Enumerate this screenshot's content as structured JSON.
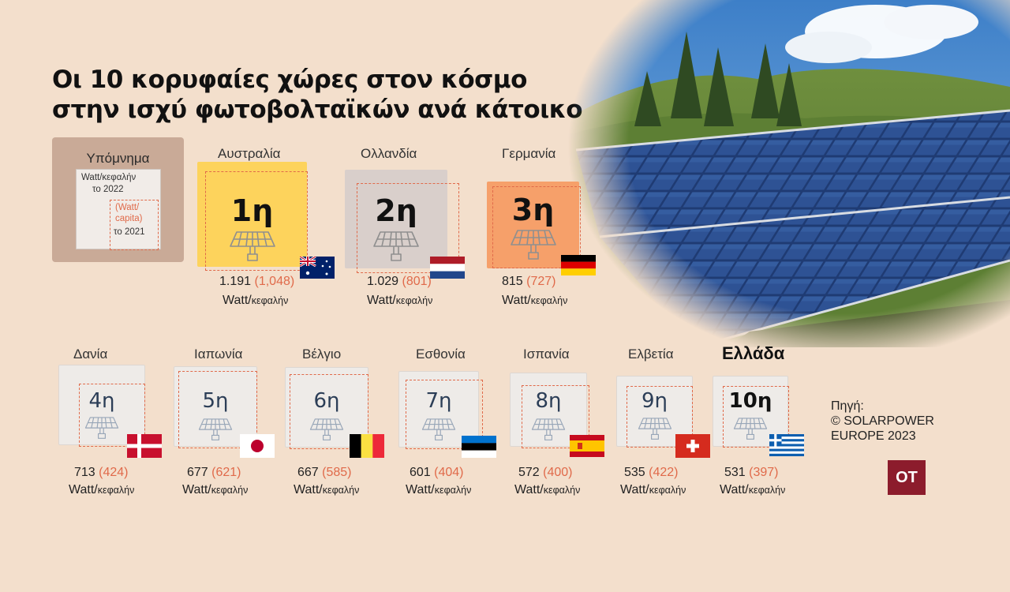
{
  "title": {
    "line1": "Οι 10 κορυφαίες χώρες στον κόσμο",
    "line2": "στην ισχύ φωτοβολταϊκών ανά κάτοικο"
  },
  "legend": {
    "title": "Υπόμνημα",
    "line1": "Watt/κεφαλήν",
    "line2": "το 2022",
    "capita": "(Watt/\ncapita)",
    "year2021": "το 2021"
  },
  "unit": {
    "main": "Watt/",
    "sub": "κεφαλήν"
  },
  "countries": [
    {
      "name": "Αυστραλία",
      "rank": "1η",
      "value2022": "1.191",
      "value2021": "(1,048)",
      "flag": "australia-flag"
    },
    {
      "name": "Ολλανδία",
      "rank": "2η",
      "value2022": "1.029",
      "value2021": "(801)",
      "flag": "netherlands-flag"
    },
    {
      "name": "Γερμανία",
      "rank": "3η",
      "value2022": "815",
      "value2021": "(727)",
      "flag": "germany-flag"
    },
    {
      "name": "Δανία",
      "rank": "4η",
      "value2022": "713",
      "value2021": "(424)",
      "flag": "denmark-flag"
    },
    {
      "name": "Ιαπωνία",
      "rank": "5η",
      "value2022": "677",
      "value2021": "(621)",
      "flag": "japan-flag"
    },
    {
      "name": "Βέλγιο",
      "rank": "6η",
      "value2022": "667",
      "value2021": "(585)",
      "flag": "belgium-flag"
    },
    {
      "name": "Εσθονία",
      "rank": "7η",
      "value2022": "601",
      "value2021": "(404)",
      "flag": "estonia-flag"
    },
    {
      "name": "Ισπανία",
      "rank": "8η",
      "value2022": "572",
      "value2021": "(400)",
      "flag": "spain-flag"
    },
    {
      "name": "Ελβετία",
      "rank": "9η",
      "value2022": "535",
      "value2021": "(422)",
      "flag": "switzerland-flag"
    },
    {
      "name": "Ελλάδα",
      "rank": "10η",
      "value2022": "531",
      "value2021": "(397)",
      "flag": "greece-flag"
    }
  ],
  "source": {
    "line1": "Πηγή:",
    "line2": "© SOLARPOWER",
    "line3": "EUROPE 2023"
  },
  "logo": "OT",
  "colors": {
    "background": "#f3dfcc",
    "first": "#fdd35c",
    "second": "#d9cfcb",
    "third": "#f6a06a",
    "others": "#eeebe8",
    "accent": "#e06a4a",
    "logo": "#8c1c2c"
  }
}
